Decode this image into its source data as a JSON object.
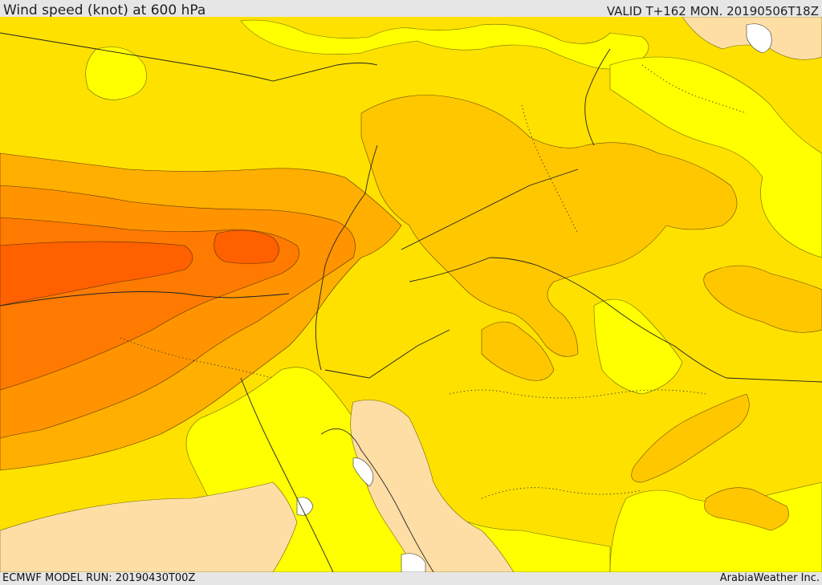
{
  "header": {
    "title": "Wind speed (knot) at 600 hPa",
    "valid_time": "VALID T+162 MON. 20190506T18Z"
  },
  "footer": {
    "model_run": "ECMWF MODEL RUN: 20190430T00Z",
    "credit": "ArabiaWeather Inc."
  },
  "map": {
    "variable": "wind speed",
    "units": "knot",
    "level": "600 hPa",
    "palette": {
      "very_light": "#ffdea6",
      "light_yellow": "#ffff00",
      "yellow": "#ffe100",
      "gold": "#ffc700",
      "orange_light": "#ffaf00",
      "orange": "#ff9400",
      "orange_dark": "#ff7a00",
      "red_orange": "#ff6000",
      "water": "#ffffff"
    }
  }
}
